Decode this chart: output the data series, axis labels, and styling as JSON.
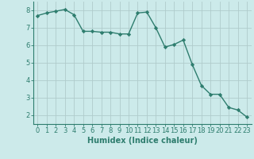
{
  "x": [
    0,
    1,
    2,
    3,
    4,
    5,
    6,
    7,
    8,
    9,
    10,
    11,
    12,
    13,
    14,
    15,
    16,
    17,
    18,
    19,
    20,
    21,
    22,
    23
  ],
  "y": [
    7.7,
    7.85,
    7.95,
    8.05,
    7.75,
    6.8,
    6.8,
    6.75,
    6.75,
    6.65,
    6.65,
    7.85,
    7.9,
    7.0,
    5.9,
    6.05,
    6.3,
    4.9,
    3.7,
    3.2,
    3.2,
    2.45,
    2.3,
    1.9
  ],
  "line_color": "#2e7d6e",
  "marker": "D",
  "markersize": 2.2,
  "linewidth": 1.0,
  "xlabel": "Humidex (Indice chaleur)",
  "xlim": [
    -0.5,
    23.5
  ],
  "ylim": [
    1.5,
    8.5
  ],
  "yticks": [
    2,
    3,
    4,
    5,
    6,
    7,
    8
  ],
  "xticks": [
    0,
    1,
    2,
    3,
    4,
    5,
    6,
    7,
    8,
    9,
    10,
    11,
    12,
    13,
    14,
    15,
    16,
    17,
    18,
    19,
    20,
    21,
    22,
    23
  ],
  "bg_color": "#cceaea",
  "grid_color": "#b0cccc",
  "axis_color": "#2e7d6e",
  "xlabel_fontsize": 7.0,
  "tick_fontsize": 6.0
}
